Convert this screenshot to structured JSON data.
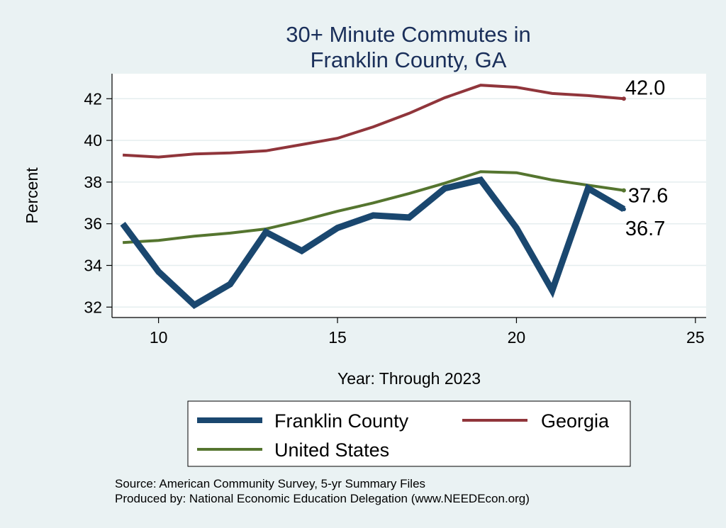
{
  "chart_data": {
    "type": "line",
    "title_lines": [
      "30+ Minute Commutes in",
      "Franklin County, GA"
    ],
    "xlabel": "Year: Through 2023",
    "ylabel": "Percent",
    "xlim": [
      8.7,
      25.3
    ],
    "ylim": [
      31.5,
      43.2
    ],
    "xticks": [
      10,
      15,
      20,
      25
    ],
    "yticks": [
      32,
      34,
      36,
      38,
      40,
      42
    ],
    "grid": true,
    "legend_position": "bottom",
    "series": [
      {
        "name": "Franklin County",
        "color": "#1a476f",
        "x": [
          9,
          10,
          11,
          12,
          13,
          14,
          15,
          16,
          17,
          18,
          19,
          20,
          21,
          22,
          23
        ],
        "y": [
          36.0,
          33.7,
          32.1,
          33.1,
          35.6,
          34.7,
          35.8,
          36.4,
          36.3,
          37.7,
          38.1,
          35.8,
          32.8,
          37.7,
          36.7
        ],
        "end_label": "36.7"
      },
      {
        "name": "Georgia",
        "color": "#90353b",
        "x": [
          9,
          10,
          11,
          12,
          13,
          14,
          15,
          16,
          17,
          18,
          19,
          20,
          21,
          22,
          23
        ],
        "y": [
          39.3,
          39.2,
          39.35,
          39.4,
          39.5,
          39.8,
          40.1,
          40.65,
          41.3,
          42.05,
          42.65,
          42.55,
          42.25,
          42.15,
          42.0
        ],
        "end_label": "42.0"
      },
      {
        "name": "United States",
        "color": "#55752f",
        "x": [
          9,
          10,
          11,
          12,
          13,
          14,
          15,
          16,
          17,
          18,
          19,
          20,
          21,
          22,
          23
        ],
        "y": [
          35.1,
          35.2,
          35.4,
          35.55,
          35.75,
          36.15,
          36.6,
          37.0,
          37.45,
          37.95,
          38.5,
          38.45,
          38.1,
          37.85,
          37.6
        ],
        "end_label": "37.6"
      }
    ]
  },
  "notes": [
    "Source: American Community Survey, 5-yr Summary Files",
    "Produced by: National Economic Education Delegation (www.NEEDEcon.org)"
  ]
}
